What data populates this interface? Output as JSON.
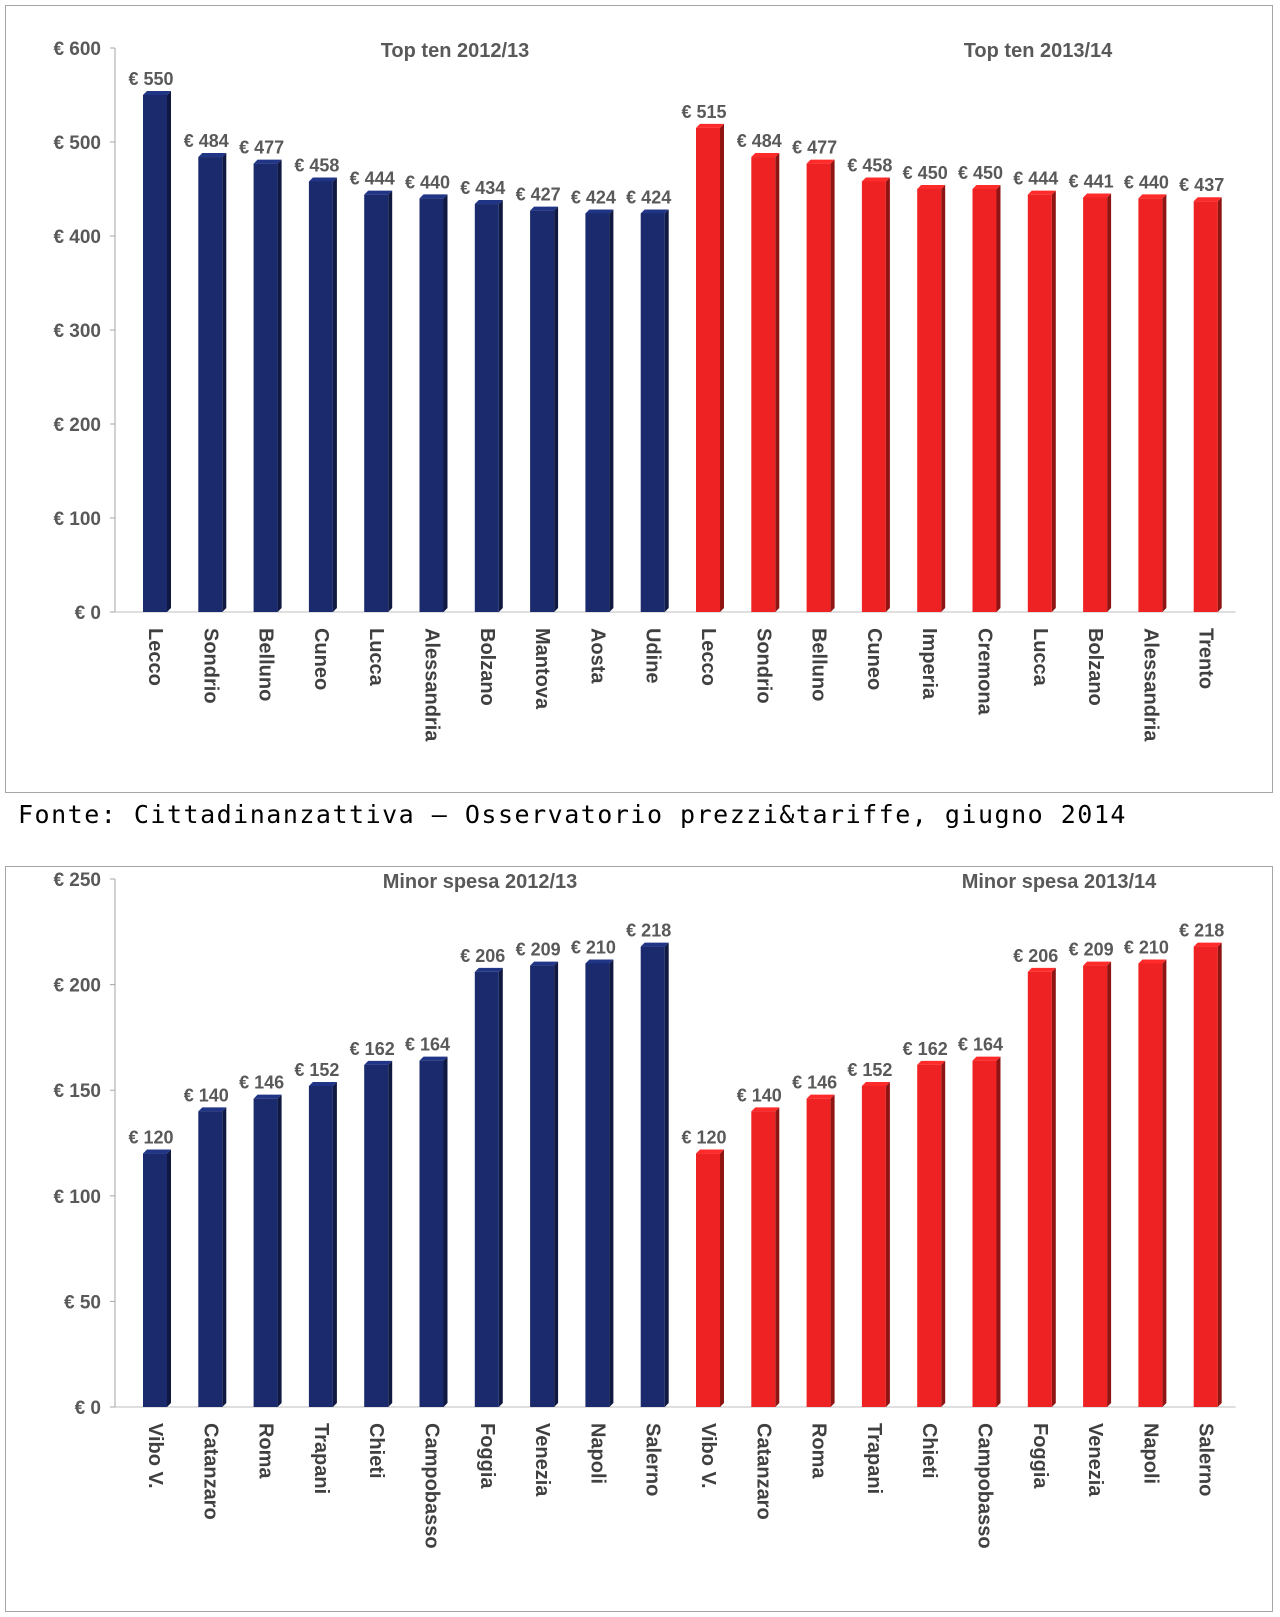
{
  "source": "Fonte: Cittadinanzattiva – Osservatorio prezzi&tariffe, giugno 2014",
  "chart_data": [
    {
      "type": "bar",
      "title": "",
      "group_titles": [
        "Top ten 2012/13",
        "Top ten 2013/14"
      ],
      "categories": [
        "Lecco",
        "Sondrio",
        "Belluno",
        "Cuneo",
        "Lucca",
        "Alessandria",
        "Bolzano",
        "Mantova",
        "Aosta",
        "Udine",
        "Lecco",
        "Sondrio",
        "Belluno",
        "Cuneo",
        "Imperia",
        "Cremona",
        "Lucca",
        "Bolzano",
        "Alessandria",
        "Trento"
      ],
      "values": [
        550,
        484,
        477,
        458,
        444,
        440,
        434,
        427,
        424,
        424,
        515,
        484,
        477,
        458,
        450,
        450,
        444,
        441,
        440,
        437
      ],
      "value_labels": [
        "€ 550",
        "€ 484",
        "€ 477",
        "€ 458",
        "€ 444",
        "€ 440",
        "€ 434",
        "€ 427",
        "€ 424",
        "€ 424",
        "€ 515",
        "€ 484",
        "€ 477",
        "€ 458",
        "€ 450",
        "€ 450",
        "€ 444",
        "€ 441",
        "€ 440",
        "€ 437"
      ],
      "group_colors": [
        "#1a2a6c",
        "#ee2222"
      ],
      "ylim": [
        0,
        600
      ],
      "yticks": [
        0,
        100,
        200,
        300,
        400,
        500,
        600
      ],
      "ytick_labels": [
        "€ 0",
        "€ 100",
        "€ 200",
        "€ 300",
        "€ 400",
        "€ 500",
        "€ 600"
      ],
      "grid": false,
      "legend": "none"
    },
    {
      "type": "bar",
      "title": "",
      "group_titles": [
        "Minor spesa 2012/13",
        "Minor spesa 2013/14"
      ],
      "categories": [
        "Vibo V.",
        "Catanzaro",
        "Roma",
        "Trapani",
        "Chieti",
        "Campobasso",
        "Foggia",
        "Venezia",
        "Napoli",
        "Salerno",
        "Vibo V.",
        "Catanzaro",
        "Roma",
        "Trapani",
        "Chieti",
        "Campobasso",
        "Foggia",
        "Venezia",
        "Napoli",
        "Salerno"
      ],
      "values": [
        120,
        140,
        146,
        152,
        162,
        164,
        206,
        209,
        210,
        218,
        120,
        140,
        146,
        152,
        162,
        164,
        206,
        209,
        210,
        218
      ],
      "value_labels": [
        "€ 120",
        "€ 140",
        "€ 146",
        "€ 152",
        "€ 162",
        "€ 164",
        "€ 206",
        "€ 209",
        "€ 210",
        "€ 218",
        "€ 120",
        "€ 140",
        "€ 146",
        "€ 152",
        "€ 162",
        "€ 164",
        "€ 206",
        "€ 209",
        "€ 210",
        "€ 218"
      ],
      "group_colors": [
        "#1a2a6c",
        "#ee2222"
      ],
      "ylim": [
        0,
        250
      ],
      "yticks": [
        0,
        50,
        100,
        150,
        200,
        250
      ],
      "ytick_labels": [
        "€ 0",
        "€ 50",
        "€ 100",
        "€ 150",
        "€ 200",
        "€ 250"
      ],
      "grid": false,
      "legend": "none"
    }
  ]
}
